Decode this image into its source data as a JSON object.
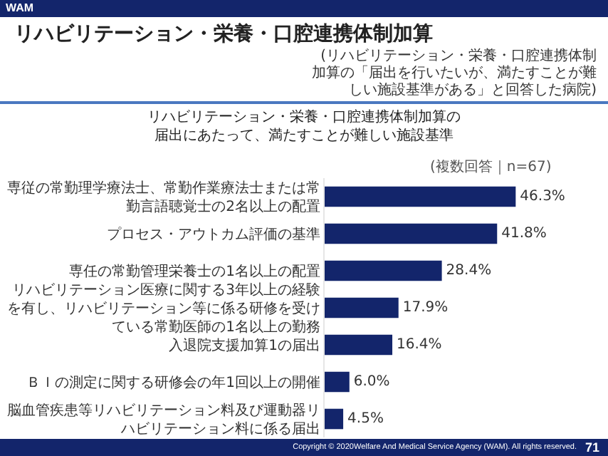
{
  "chart_data": {
    "type": "bar",
    "orientation": "horizontal",
    "title": "リハビリテーション・栄養・口腔連携体制加算",
    "subtitle": "リハビリテーション・栄養・口腔連携体制加算の届出にあたって、満たすことが難しい施設基準",
    "categories": [
      "専従の常勤理学療法士、常勤作業療法士または常勤言語聴覚士の2名以上の配置",
      "プロセス・アウトカム評価の基準",
      "専任の常勤管理栄養士の1名以上の配置",
      "リハビリテーション医療に関する3年以上の経験を有し、リハビリテーション等に係る研修を受けている常勤医師の1名以上の勤務",
      "入退院支援加算1の届出",
      "ＢＩの測定に関する研修会の年1回以上の開催",
      "脳血管疾患等リハビリテーション料及び運動器リハビリテーション料に係る届出"
    ],
    "values": [
      46.3,
      41.8,
      28.4,
      17.9,
      16.4,
      6.0,
      4.5
    ],
    "value_labels": [
      "46.3%",
      "41.8%",
      "28.4%",
      "17.9%",
      "16.4%",
      "6.0%",
      "4.5%"
    ],
    "color": "#13256b",
    "legend": false,
    "annotations": [
      "(リハビリテーション・栄養・口腔連携体制加算の「届出を行いたいが、満たすことが難しい施設基準がある」と回答した病院)",
      "(複数回答｜n=67)",
      "Copyright © 2020Welfare And Medical Service Agency (WAM). All rights reserved.",
      "71",
      "WAM"
    ]
  }
}
